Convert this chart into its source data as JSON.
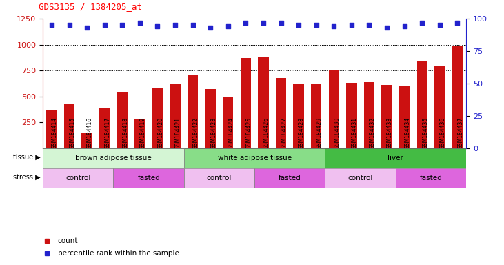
{
  "title": "GDS3135 / 1384205_at",
  "samples": [
    "GSM184414",
    "GSM184415",
    "GSM184416",
    "GSM184417",
    "GSM184418",
    "GSM184419",
    "GSM184420",
    "GSM184421",
    "GSM184422",
    "GSM184423",
    "GSM184424",
    "GSM184425",
    "GSM184426",
    "GSM184427",
    "GSM184428",
    "GSM184429",
    "GSM184430",
    "GSM184431",
    "GSM184432",
    "GSM184433",
    "GSM184434",
    "GSM184435",
    "GSM184436",
    "GSM184437"
  ],
  "counts": [
    370,
    430,
    150,
    390,
    545,
    285,
    575,
    615,
    710,
    570,
    500,
    870,
    880,
    680,
    625,
    620,
    750,
    630,
    635,
    610,
    595,
    840,
    790,
    990
  ],
  "percentile_ranks": [
    95,
    95,
    93,
    95,
    95,
    97,
    94,
    95,
    95,
    93,
    94,
    97,
    97,
    97,
    95,
    95,
    94,
    95,
    95,
    93,
    94,
    97,
    95,
    97
  ],
  "bar_color": "#cc1111",
  "dot_color": "#2222cc",
  "ylim_left": [
    0,
    1250
  ],
  "ylim_right": [
    0,
    100
  ],
  "yticks_left": [
    250,
    500,
    750,
    1000,
    1250
  ],
  "yticks_right": [
    0,
    25,
    50,
    75,
    100
  ],
  "grid_values": [
    500,
    750,
    1000
  ],
  "tissue_groups": [
    {
      "label": "brown adipose tissue",
      "start": 0,
      "end": 8,
      "color": "#d4f5d4"
    },
    {
      "label": "white adipose tissue",
      "start": 8,
      "end": 16,
      "color": "#88dd88"
    },
    {
      "label": "liver",
      "start": 16,
      "end": 24,
      "color": "#44bb44"
    }
  ],
  "stress_groups": [
    {
      "label": "control",
      "start": 0,
      "end": 4,
      "color": "#f0c0f0"
    },
    {
      "label": "fasted",
      "start": 4,
      "end": 8,
      "color": "#dd66dd"
    },
    {
      "label": "control",
      "start": 8,
      "end": 12,
      "color": "#f0c0f0"
    },
    {
      "label": "fasted",
      "start": 12,
      "end": 16,
      "color": "#dd66dd"
    },
    {
      "label": "control",
      "start": 16,
      "end": 20,
      "color": "#f0c0f0"
    },
    {
      "label": "fasted",
      "start": 20,
      "end": 24,
      "color": "#dd66dd"
    }
  ],
  "background_color": "#ffffff",
  "plot_bg_color": "#ffffff"
}
